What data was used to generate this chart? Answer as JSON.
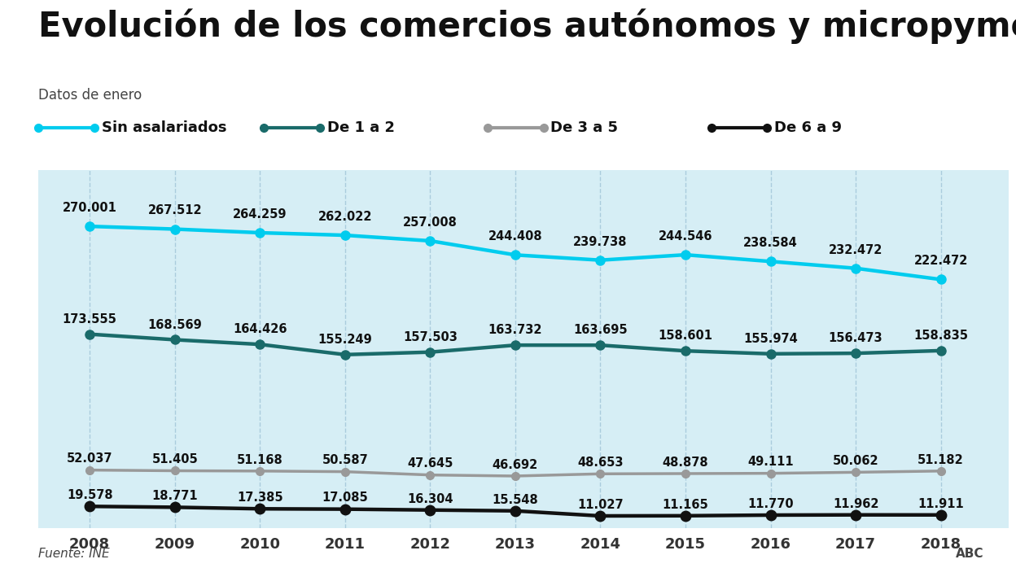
{
  "title": "Evolución de los comercios autónomos y micropymes",
  "subtitle": "Datos de enero",
  "years": [
    2008,
    2009,
    2010,
    2011,
    2012,
    2013,
    2014,
    2015,
    2016,
    2017,
    2018
  ],
  "series": [
    {
      "label": "Sin asalariados",
      "values": [
        270001,
        267512,
        264259,
        262022,
        257008,
        244408,
        239738,
        244546,
        238584,
        232472,
        222472
      ],
      "color": "#00CCEE",
      "linewidth": 3.2,
      "markersize": 8,
      "zorder": 4
    },
    {
      "label": "De 1 a 2",
      "values": [
        173555,
        168569,
        164426,
        155249,
        157503,
        163732,
        163695,
        158601,
        155974,
        156473,
        158835
      ],
      "color": "#1A6B6A",
      "linewidth": 3.2,
      "markersize": 8,
      "zorder": 3
    },
    {
      "label": "De 3 a 5",
      "values": [
        52037,
        51405,
        51168,
        50587,
        47645,
        46692,
        48653,
        48878,
        49111,
        50062,
        51182
      ],
      "color": "#999999",
      "linewidth": 2.5,
      "markersize": 7,
      "zorder": 2
    },
    {
      "label": "De 6 a 9",
      "values": [
        19578,
        18771,
        17385,
        17085,
        16304,
        15548,
        11027,
        11165,
        11770,
        11962,
        11911
      ],
      "color": "#111111",
      "linewidth": 3.2,
      "markersize": 9,
      "zorder": 5
    }
  ],
  "background_color": "#FFFFFF",
  "fill_color": "#D6EEF5",
  "grid_color": "#AACCDD",
  "title_fontsize": 30,
  "subtitle_fontsize": 12,
  "label_fontsize": 10.5,
  "legend_fontsize": 13,
  "tick_fontsize": 13,
  "annotation_offsets": {
    "Sin asalariados": 11000,
    "De 1 a 2": 8000,
    "De 3 a 5": 4500,
    "De 6 a 9": 4500
  },
  "footer_left": "Fuente: INE",
  "footer_right": "ABC",
  "xlim": [
    2007.4,
    2018.8
  ],
  "ylim": [
    0,
    320000
  ]
}
